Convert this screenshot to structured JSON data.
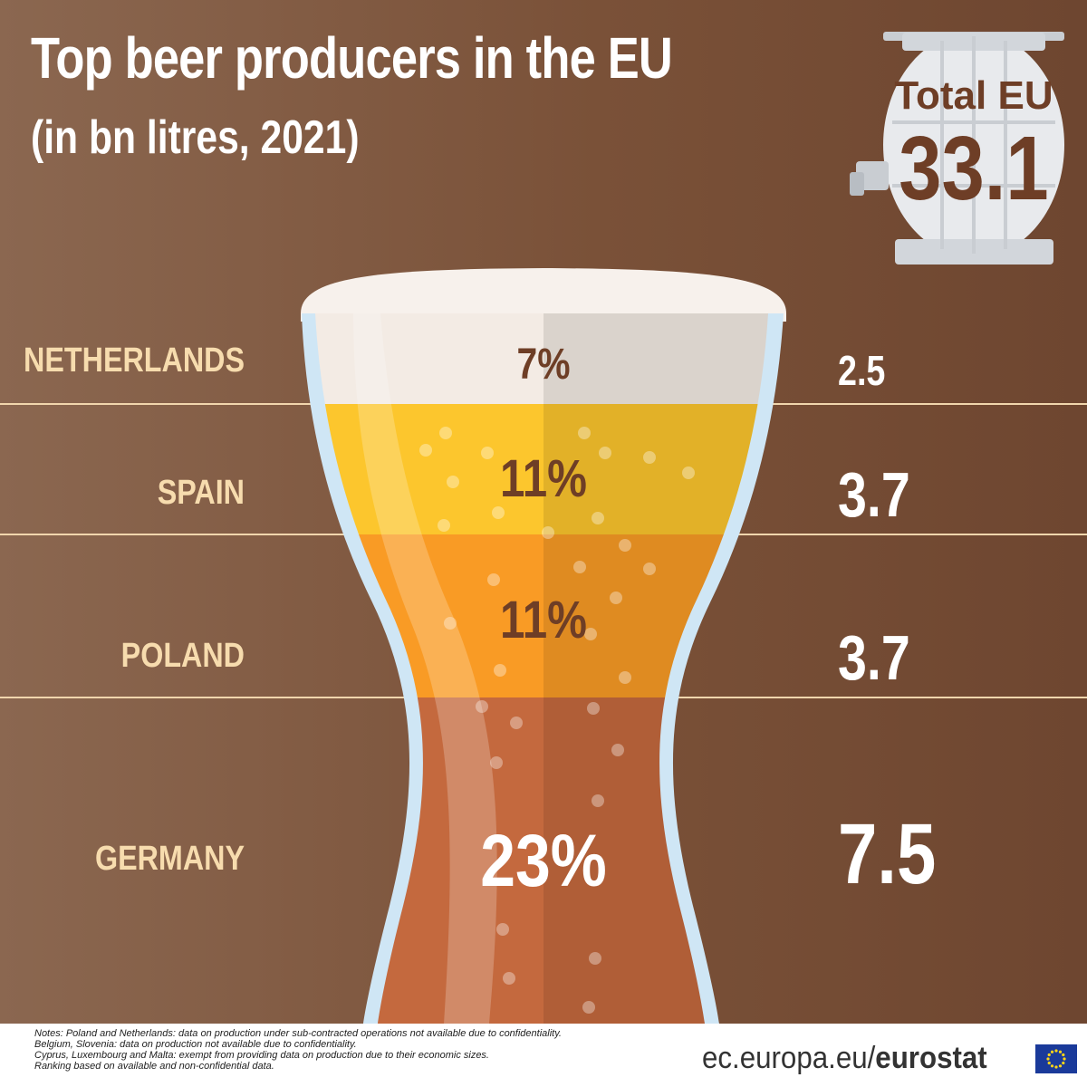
{
  "header": {
    "title": "Top beer producers in the EU",
    "subtitle": "(in bn litres, 2021)"
  },
  "barrel": {
    "label": "Total EU",
    "total": "33.1",
    "icon": "barrel-icon"
  },
  "chart_data": {
    "type": "bar",
    "title": "Top beer producers in the EU",
    "subtitle": "(in bn litres, 2021)",
    "categories": [
      "NETHERLANDS",
      "SPAIN",
      "POLAND",
      "GERMANY"
    ],
    "values": [
      2.5,
      3.7,
      3.7,
      7.5
    ],
    "value_labels": [
      "2.5",
      "3.7",
      "3.7",
      "7.5"
    ],
    "percents": [
      7,
      11,
      11,
      23
    ],
    "percent_labels": [
      "7%",
      "11%",
      "11%",
      "23%"
    ],
    "total": 33.1,
    "colors": [
      "#f3ebe4",
      "#fcc62d",
      "#f99b25",
      "#c4693e"
    ],
    "stacked": true,
    "legend": "none"
  },
  "footer": {
    "notes": [
      "Notes: Poland and Netherlands: data on production under sub-contracted operations not available due to confidentiality.",
      "Belgium, Slovenia: data on production not available due to confidentiality.",
      "Cyprus, Luxembourg and Malta: exempt from providing data on production due to their economic sizes.",
      "Ranking based on available and non-confidential data."
    ],
    "credit_prefix": "ec.europa.eu/",
    "credit_brand": "eurostat",
    "logo": "eu-flag-icon"
  },
  "colors": {
    "text_light": "#ffffff",
    "label_cream": "#f7dcae",
    "pct_brown": "#6e3e26",
    "glass": "#cfe6f5"
  }
}
